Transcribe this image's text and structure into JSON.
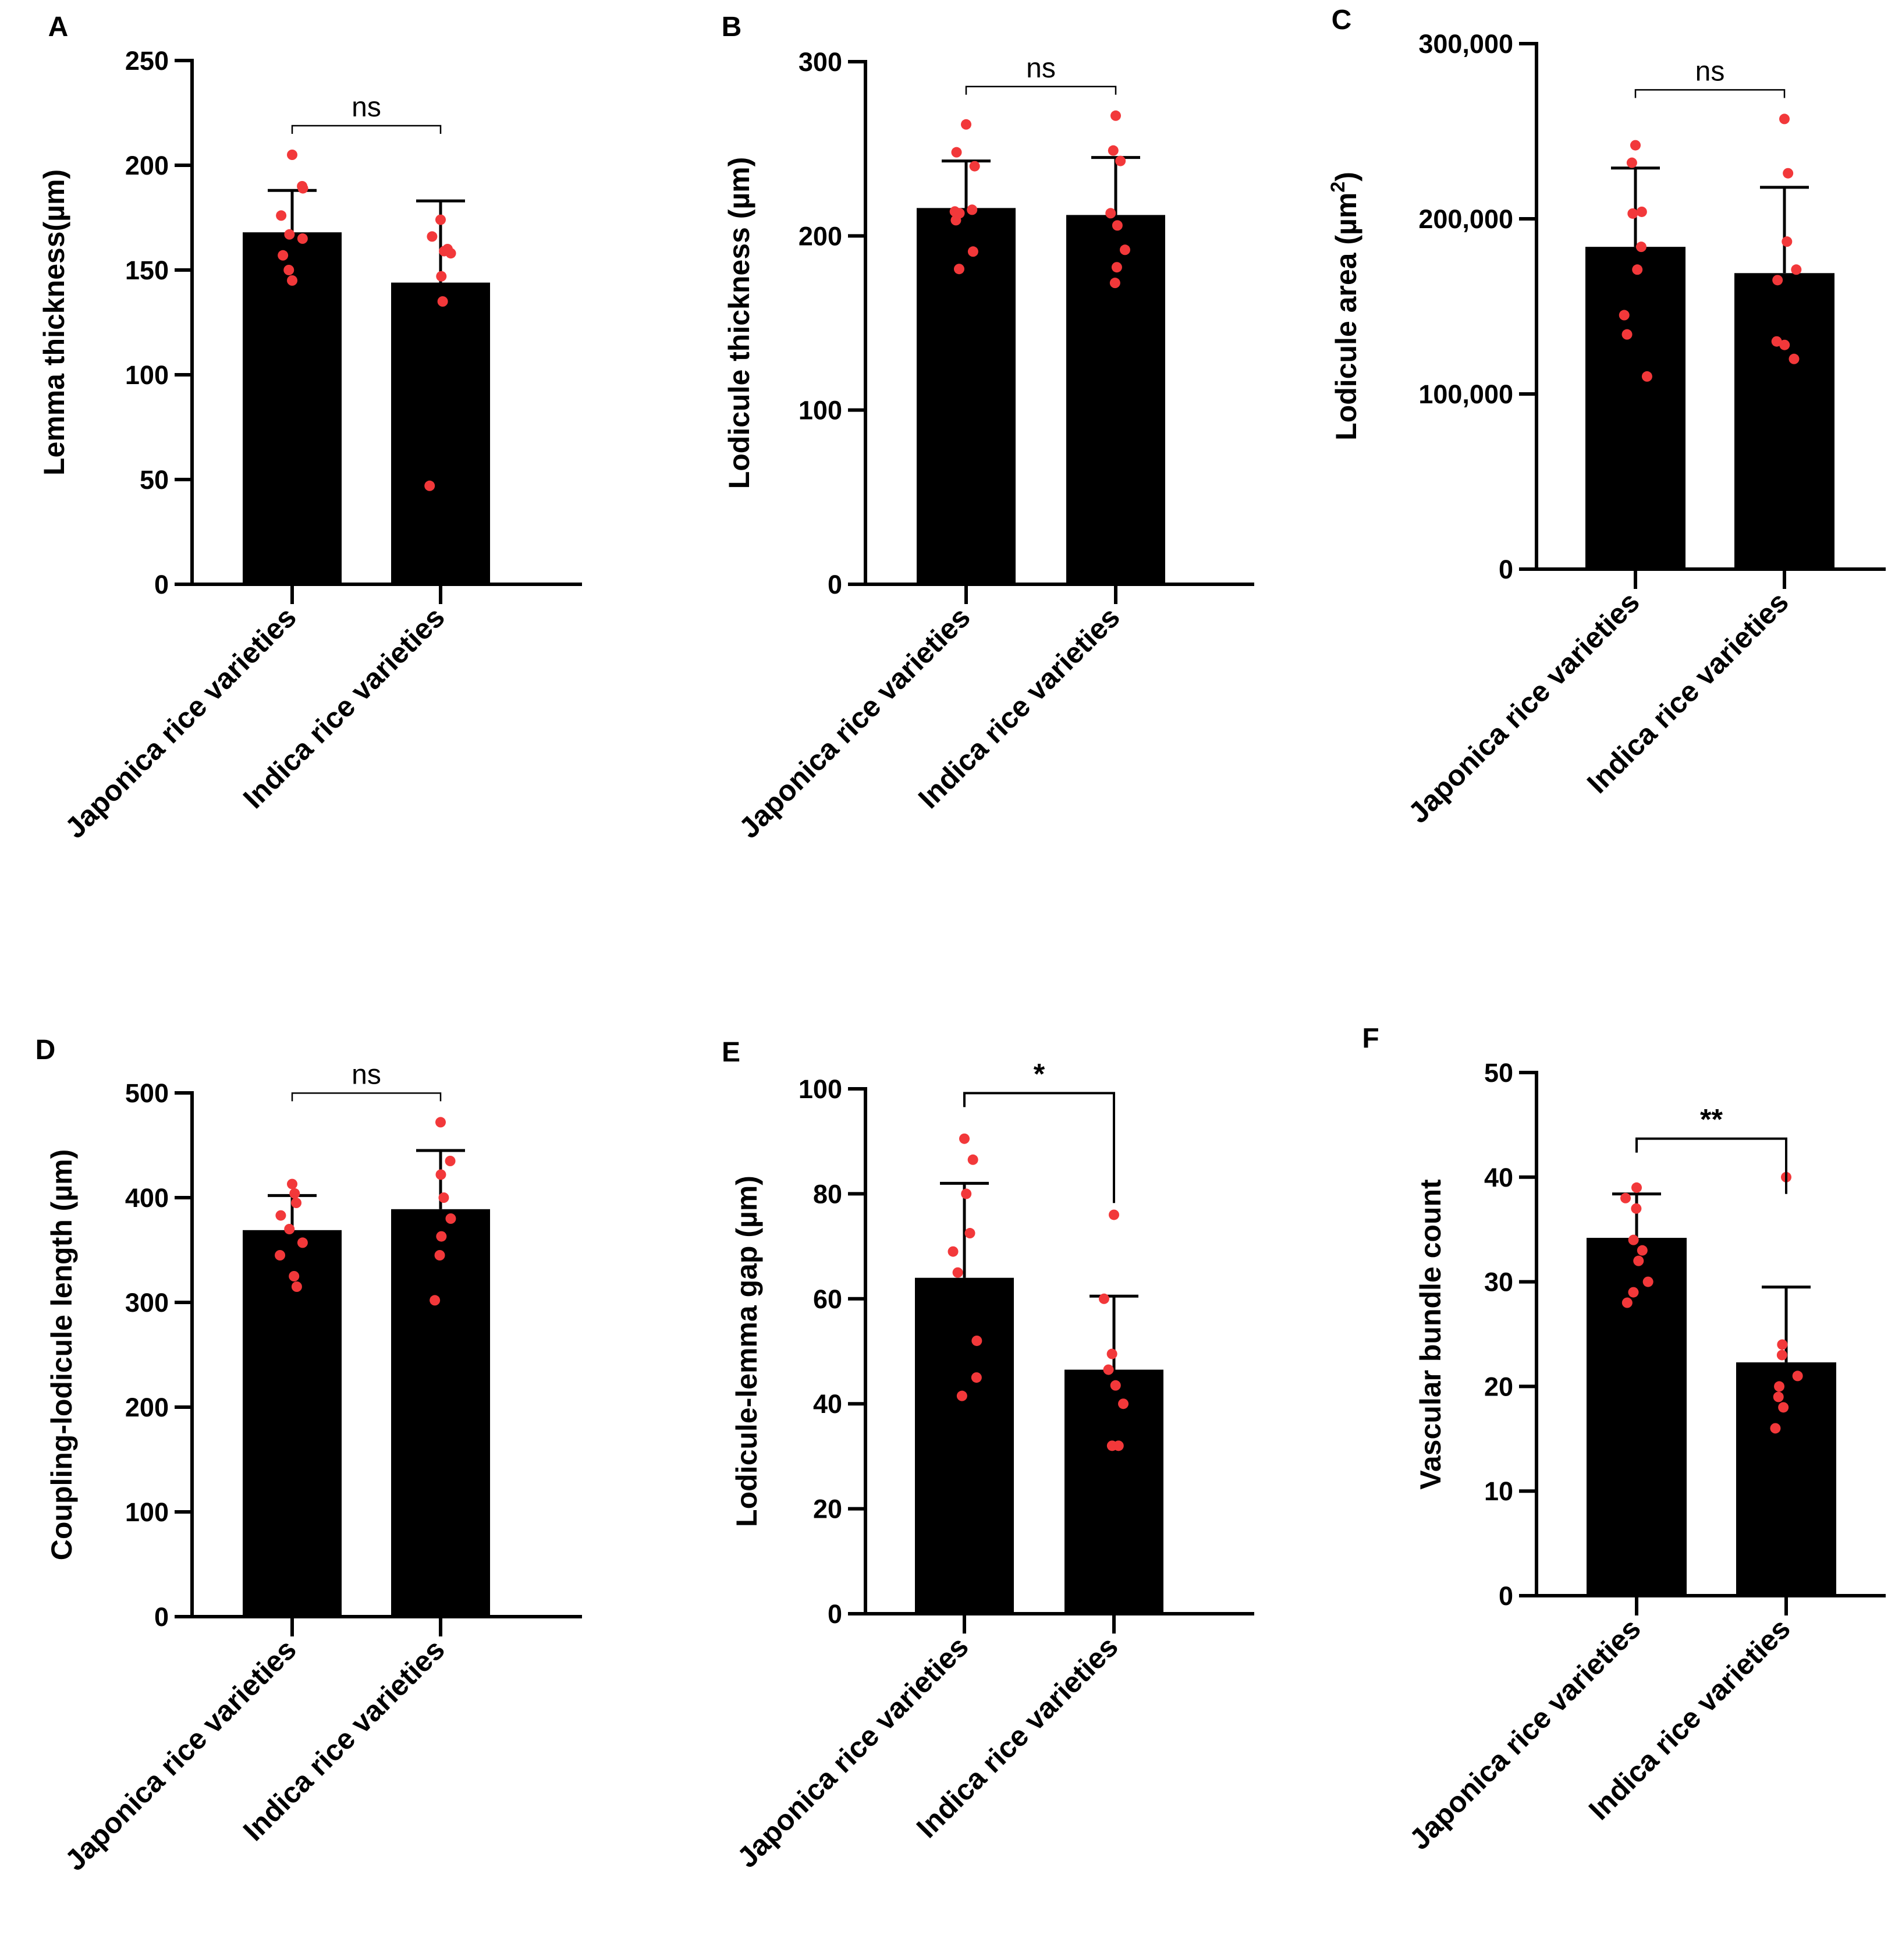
{
  "colors": {
    "bar": "#000000",
    "point": "#f2383a",
    "axis": "#000000"
  },
  "chart_data": [
    {
      "type": "bar",
      "panel": "A",
      "ylabel": "Lemma thickness(µm)",
      "xlabel": "",
      "categories": [
        "Japonica rice varieties",
        "Indica rice varieties"
      ],
      "values": [
        168,
        144
      ],
      "error": [
        20,
        39
      ],
      "points": [
        [
          205,
          190,
          189,
          176,
          167,
          165,
          157,
          150,
          145
        ],
        [
          174,
          166,
          160,
          159,
          158,
          147,
          135,
          47
        ]
      ],
      "ylim": [
        0,
        250
      ],
      "yticks": [
        0,
        50,
        100,
        150,
        200,
        250
      ],
      "ytick_labels": [
        "0",
        "50",
        "100",
        "150",
        "200",
        "250"
      ],
      "significance": "ns",
      "grid": false
    },
    {
      "type": "bar",
      "panel": "B",
      "ylabel": "Lodicule thickness (µm)",
      "xlabel": "",
      "categories": [
        "Japonica rice varieties",
        "Indica rice varieties"
      ],
      "values": [
        216,
        212
      ],
      "error": [
        27,
        33
      ],
      "points": [
        [
          264,
          248,
          240,
          215,
          214,
          213,
          209,
          191,
          181
        ],
        [
          269,
          249,
          243,
          213,
          206,
          192,
          182,
          173
        ]
      ],
      "ylim": [
        0,
        300
      ],
      "yticks": [
        0,
        100,
        200,
        300
      ],
      "ytick_labels": [
        "0",
        "100",
        "200",
        "300"
      ],
      "significance": "ns",
      "grid": false
    },
    {
      "type": "bar",
      "panel": "C",
      "ylabel": "Lodicule area (µm²)",
      "xlabel": "",
      "categories": [
        "Japonica rice varieties",
        "Indica rice varieties"
      ],
      "values": [
        184000,
        169000
      ],
      "error": [
        45000,
        49000
      ],
      "points": [
        [
          242000,
          232000,
          204000,
          203000,
          184000,
          171000,
          145000,
          134000,
          110000
        ],
        [
          257000,
          226000,
          187000,
          171000,
          165000,
          130000,
          128000,
          120000
        ]
      ],
      "ylim": [
        0,
        300000
      ],
      "yticks": [
        0,
        100000,
        200000,
        300000
      ],
      "ytick_labels": [
        "0",
        "100,000",
        "200,000",
        "300,000"
      ],
      "significance": "ns",
      "grid": false
    },
    {
      "type": "bar",
      "panel": "D",
      "ylabel": "Coupling-lodicule length (µm)",
      "xlabel": "",
      "categories": [
        "Japonica rice varieties",
        "Indica rice varieties"
      ],
      "values": [
        369,
        389
      ],
      "error": [
        33,
        56
      ],
      "points": [
        [
          413,
          404,
          395,
          383,
          370,
          357,
          345,
          325,
          315
        ],
        [
          472,
          435,
          422,
          400,
          380,
          363,
          345,
          302
        ]
      ],
      "ylim": [
        0,
        500
      ],
      "yticks": [
        0,
        100,
        200,
        300,
        400,
        500
      ],
      "ytick_labels": [
        "0",
        "100",
        "200",
        "300",
        "400",
        "500"
      ],
      "significance": "ns",
      "grid": false
    },
    {
      "type": "bar",
      "panel": "E",
      "ylabel": "Lodicule-lemma gap (µm)",
      "xlabel": "",
      "categories": [
        "Japonica rice varieties",
        "Indica rice varieties"
      ],
      "values": [
        64,
        46.5
      ],
      "error": [
        18,
        14
      ],
      "points": [
        [
          90.5,
          86.5,
          80,
          72.5,
          69,
          65,
          52,
          45,
          41.5
        ],
        [
          76,
          60,
          49.5,
          46.5,
          43.5,
          40,
          32,
          32
        ]
      ],
      "ylim": [
        0,
        100
      ],
      "yticks": [
        0,
        20,
        40,
        60,
        80,
        100
      ],
      "ytick_labels": [
        "0",
        "20",
        "40",
        "60",
        "80",
        "100"
      ],
      "significance": "*",
      "grid": false
    },
    {
      "type": "bar",
      "panel": "F",
      "ylabel": "Vascular bundle count",
      "xlabel": "",
      "categories": [
        "Japonica rice varieties",
        "Indica rice varieties"
      ],
      "values": [
        34.2,
        22.3
      ],
      "error": [
        4.2,
        7.2
      ],
      "points": [
        [
          39,
          38,
          37,
          34,
          33,
          32,
          30,
          29,
          28
        ],
        [
          40,
          24,
          23,
          21,
          20,
          19,
          18,
          16
        ]
      ],
      "ylim": [
        0,
        50
      ],
      "yticks": [
        0,
        10,
        20,
        30,
        40,
        50
      ],
      "ytick_labels": [
        "0",
        "10",
        "20",
        "30",
        "40",
        "50"
      ],
      "significance": "**",
      "grid": false
    }
  ]
}
